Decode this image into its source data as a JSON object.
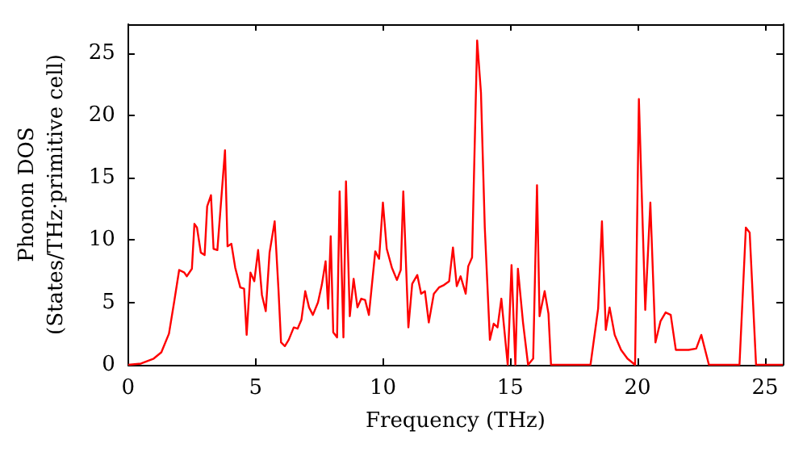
{
  "chart_data": {
    "type": "line",
    "xlabel": "Frequency (THz)",
    "ylabel": "Phonon DOS\n(States/THz·primitive cell)",
    "x": [
      0,
      0.5,
      1,
      1.3,
      1.6,
      1.8,
      2.0,
      2.2,
      2.3,
      2.5,
      2.6,
      2.7,
      2.85,
      3.0,
      3.1,
      3.25,
      3.35,
      3.5,
      3.8,
      3.9,
      4.05,
      4.2,
      4.4,
      4.55,
      4.65,
      4.8,
      4.95,
      5.1,
      5.25,
      5.4,
      5.55,
      5.75,
      5.9,
      6.0,
      6.15,
      6.3,
      6.5,
      6.65,
      6.8,
      6.95,
      7.1,
      7.25,
      7.45,
      7.6,
      7.75,
      7.85,
      7.95,
      8.05,
      8.2,
      8.3,
      8.45,
      8.55,
      8.7,
      8.85,
      9.0,
      9.15,
      9.3,
      9.45,
      9.7,
      9.85,
      10.0,
      10.15,
      10.35,
      10.55,
      10.7,
      10.8,
      11.0,
      11.15,
      11.35,
      11.5,
      11.65,
      11.8,
      12.0,
      12.2,
      12.4,
      12.6,
      12.75,
      12.9,
      13.05,
      13.25,
      13.35,
      13.5,
      13.7,
      13.85,
      14.0,
      14.2,
      14.35,
      14.5,
      14.65,
      14.9,
      15.05,
      15.2,
      15.3,
      15.5,
      15.7,
      15.9,
      16.05,
      16.15,
      16.35,
      16.5,
      16.6,
      18.15,
      18.45,
      18.6,
      18.75,
      18.9,
      19.1,
      19.35,
      19.6,
      19.9,
      20.05,
      20.3,
      20.5,
      20.7,
      20.9,
      21.1,
      21.3,
      21.5,
      21.7,
      22.0,
      22.3,
      22.5,
      22.8,
      24.0,
      24.25,
      24.4,
      24.65,
      25.7
    ],
    "series": [
      {
        "color": "#ff0000",
        "values": [
          0,
          0.1,
          0.5,
          1,
          2.5,
          5,
          7.6,
          7.4,
          7.1,
          7.7,
          11.3,
          11,
          9,
          8.8,
          12.7,
          13.6,
          9.3,
          9.2,
          17.2,
          9.5,
          9.7,
          7.8,
          6.2,
          6.1,
          2.4,
          7.4,
          6.7,
          9.2,
          5.6,
          4.3,
          9.0,
          11.5,
          6.0,
          1.8,
          1.5,
          2.0,
          3.0,
          2.9,
          3.6,
          5.9,
          4.6,
          4.0,
          5.0,
          6.4,
          8.3,
          4.5,
          10.3,
          2.6,
          2.2,
          13.9,
          2.2,
          14.7,
          3.9,
          6.9,
          4.6,
          5.3,
          5.2,
          4.0,
          9.1,
          8.5,
          13.0,
          9.3,
          7.8,
          6.8,
          7.6,
          13.9,
          3.0,
          6.5,
          7.2,
          5.7,
          5.9,
          3.4,
          5.7,
          6.2,
          6.4,
          6.7,
          9.4,
          6.3,
          7.1,
          5.7,
          7.9,
          8.6,
          26.0,
          21.8,
          11,
          2.0,
          3.3,
          3.0,
          5.3,
          0,
          8.0,
          0,
          7.7,
          3.4,
          0,
          0.5,
          14.4,
          3.9,
          5.9,
          4.1,
          0,
          0,
          4.5,
          11.5,
          2.8,
          4.6,
          2.4,
          1.2,
          0.5,
          0,
          21.3,
          4.4,
          13.0,
          1.8,
          3.5,
          4.2,
          4.0,
          1.2,
          1.2,
          1.2,
          1.3,
          2.4,
          0,
          0,
          11,
          10.6,
          0,
          0
        ]
      }
    ],
    "xlim": [
      0,
      25.7
    ],
    "xticks": [
      0,
      5,
      10,
      15,
      20,
      25
    ],
    "ylim": [
      0,
      27.3
    ],
    "yticks": [
      0,
      5,
      10,
      15,
      20,
      25
    ],
    "grid": false,
    "marker": "none",
    "line_style": "solid"
  }
}
